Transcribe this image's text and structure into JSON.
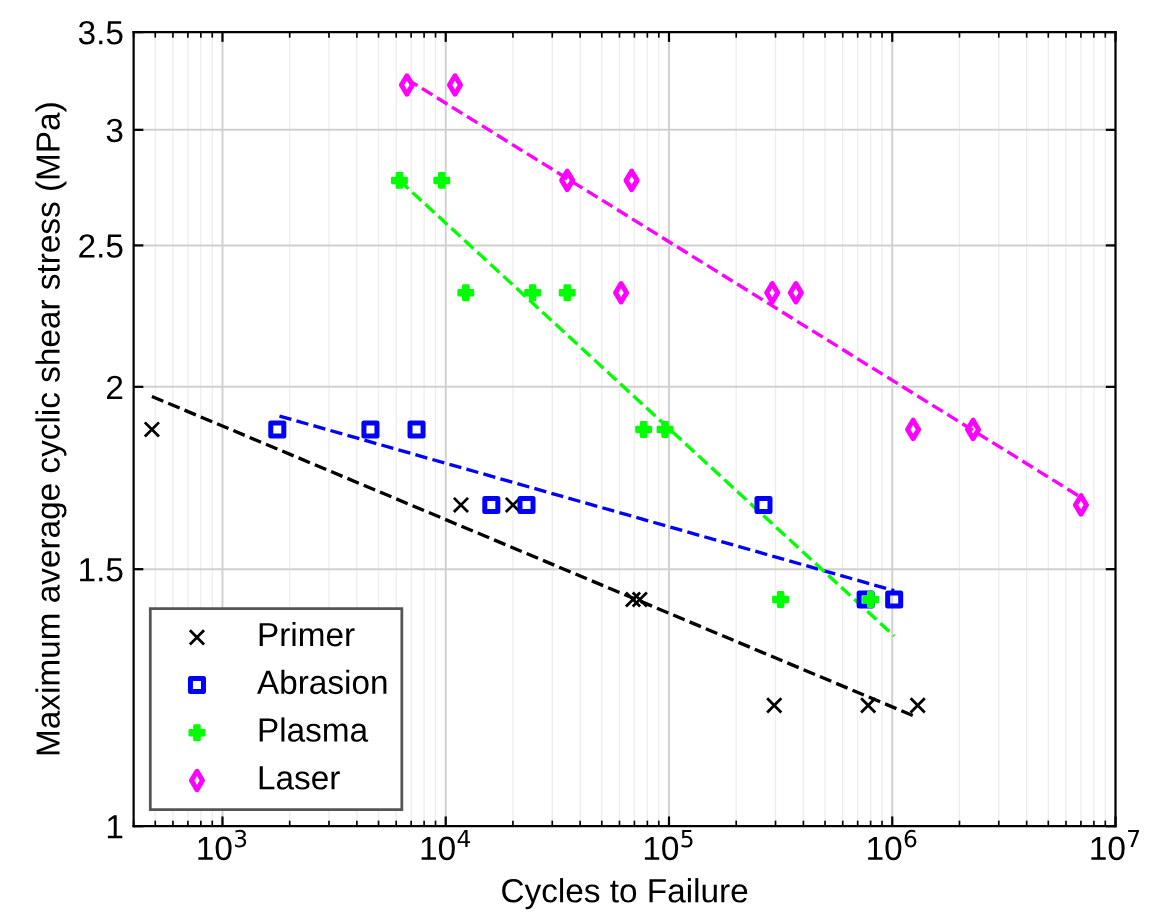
{
  "chart_data": {
    "type": "scatter",
    "xlabel": "Cycles to Failure",
    "ylabel": "Maximum average cyclic shear stress (MPa)",
    "log": "xy",
    "xlim": [
      400,
      10000000
    ],
    "ylim": [
      1,
      3.5
    ],
    "xticks": [
      {
        "value": 1000,
        "label": "10$^{3}$"
      },
      {
        "value": 10000,
        "label": "10$^{4}$"
      },
      {
        "value": 100000,
        "label": "10$^{5}$"
      },
      {
        "value": 1000000,
        "label": "10$^{6}$"
      },
      {
        "value": 10000000,
        "label": "10$^{7}$"
      }
    ],
    "yticks": [
      1,
      1.5,
      2,
      2.5,
      3,
      3.5
    ],
    "grid": true,
    "legend": "bottom left",
    "series": [
      {
        "name": "Primer",
        "marker": "cross",
        "color": "#000000",
        "x": [
          483,
          11700,
          20000,
          69000,
          74000,
          296000,
          780000,
          1300000
        ],
        "values": [
          1.87,
          1.66,
          1.66,
          1.43,
          1.43,
          1.21,
          1.21,
          1.21
        ]
      },
      {
        "name": "Abrasion",
        "marker": "square",
        "color": "#0000ff",
        "x": [
          1760,
          4600,
          7400,
          16000,
          23000,
          265000,
          760000,
          1020000
        ],
        "values": [
          1.87,
          1.87,
          1.87,
          1.66,
          1.66,
          1.66,
          1.43,
          1.43
        ]
      },
      {
        "name": "Plasma",
        "marker": "plus",
        "color": "#00ff00",
        "x": [
          6200,
          9600,
          12300,
          24500,
          35000,
          77000,
          96000,
          316000,
          800000
        ],
        "values": [
          2.77,
          2.77,
          2.32,
          2.32,
          2.32,
          1.87,
          1.87,
          1.43,
          1.43
        ]
      },
      {
        "name": "Laser",
        "marker": "diamond",
        "color": "#ff00ff",
        "x": [
          6700,
          11000,
          35000,
          68000,
          61000,
          290000,
          370000,
          1240000,
          2300000,
          7000000
        ],
        "values": [
          3.22,
          3.22,
          2.77,
          2.77,
          2.32,
          2.32,
          2.32,
          1.87,
          1.87,
          1.66
        ]
      },
      {
        "type": "line",
        "line_style": "dashed",
        "color": "#000000",
        "x": [
          483,
          1250000
        ],
        "values": [
          1.97,
          1.19
        ]
      },
      {
        "type": "line",
        "line_style": "dashed",
        "color": "#0000ff",
        "x": [
          1800,
          1020000
        ],
        "values": [
          1.91,
          1.45
        ]
      },
      {
        "type": "line",
        "line_style": "dashed",
        "color": "#00ff00",
        "x": [
          6200,
          1020000
        ],
        "values": [
          2.77,
          1.35
        ]
      },
      {
        "type": "line",
        "line_style": "dashed",
        "color": "#ff00ff",
        "x": [
          6700,
          7000000
        ],
        "values": [
          3.25,
          1.68
        ]
      }
    ]
  }
}
